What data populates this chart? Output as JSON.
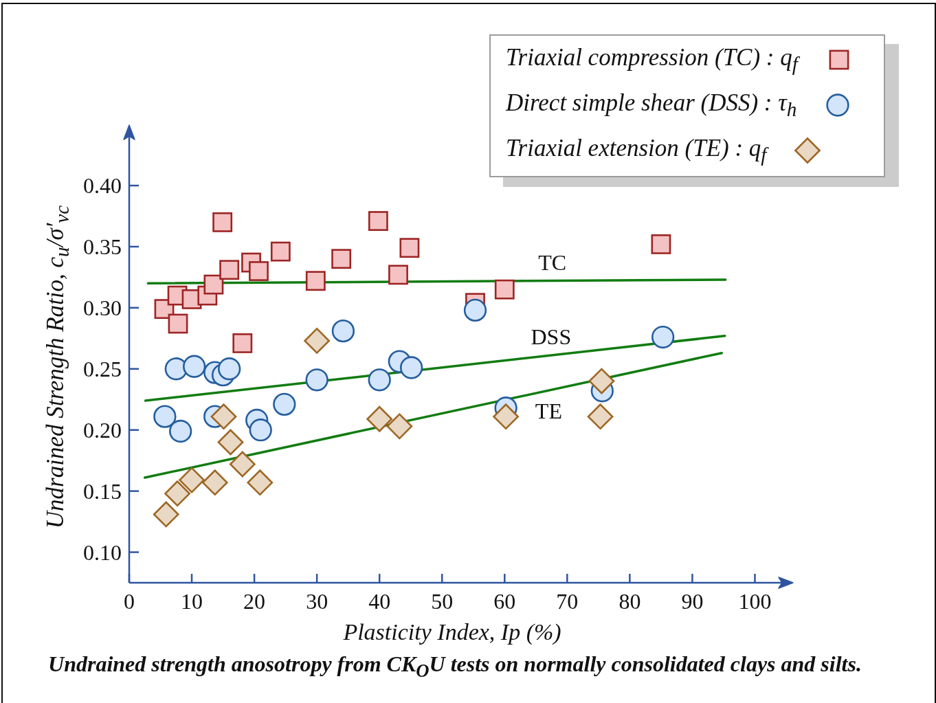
{
  "chart_data": {
    "type": "scatter",
    "xlabel": "Plasticity Index, Ip (%)",
    "ylabel": "Undrained Strength Ratio, c$_{u}$/σ′$_{vc}$",
    "xlim": [
      0,
      105
    ],
    "xticks": [
      0,
      10,
      20,
      30,
      40,
      50,
      60,
      70,
      80,
      90,
      100
    ],
    "ylim": [
      0.075,
      0.445
    ],
    "yticks": [
      {
        "value": 0.1,
        "label": "0.10"
      },
      {
        "value": 0.15,
        "label": "0.15"
      },
      {
        "value": 0.2,
        "label": "0.20"
      },
      {
        "value": 0.25,
        "label": "0.25"
      },
      {
        "value": 0.3,
        "label": "0.30"
      },
      {
        "value": 0.35,
        "label": "0.35"
      },
      {
        "value": 0.4,
        "label": "0.40"
      }
    ],
    "legend": "top right",
    "series": [
      {
        "name": "Triaxial compression (TC) : q$_{f}$",
        "marker": "square",
        "color": "#f4c2c2",
        "x": [
          5.6,
          7.7,
          7.8,
          10.0,
          12.5,
          13.5,
          14.9,
          16.0,
          18.1,
          19.5,
          20.7,
          24.2,
          29.8,
          33.9,
          39.8,
          43.0,
          44.8,
          55.3,
          60.0,
          85.0
        ],
        "values": [
          0.299,
          0.31,
          0.287,
          0.307,
          0.31,
          0.319,
          0.37,
          0.331,
          0.271,
          0.337,
          0.33,
          0.346,
          0.322,
          0.34,
          0.371,
          0.327,
          0.349,
          0.304,
          0.315,
          0.352
        ]
      },
      {
        "name": "Direct simple shear (DSS) : τ$_{h}$",
        "marker": "circle",
        "color": "#d2e5fb",
        "x": [
          5.7,
          7.5,
          8.2,
          10.4,
          13.7,
          13.7,
          15.0,
          16.0,
          20.4,
          21.0,
          24.8,
          30.0,
          34.2,
          40.0,
          43.2,
          45.1,
          55.3,
          60.2,
          75.6,
          85.3
        ],
        "values": [
          0.211,
          0.25,
          0.199,
          0.252,
          0.247,
          0.211,
          0.245,
          0.25,
          0.208,
          0.2,
          0.221,
          0.241,
          0.281,
          0.241,
          0.256,
          0.251,
          0.298,
          0.218,
          0.232,
          0.276
        ]
      },
      {
        "name": "Triaxial extension (TE) : q$_{f}$",
        "marker": "diamond",
        "color": "#e9d8c3",
        "x": [
          5.9,
          7.7,
          10.0,
          13.7,
          15.1,
          16.2,
          18.1,
          20.9,
          30.0,
          40.0,
          43.2,
          60.2,
          75.3,
          75.5
        ],
        "values": [
          0.131,
          0.148,
          0.159,
          0.157,
          0.211,
          0.19,
          0.172,
          0.157,
          0.273,
          0.209,
          0.203,
          0.211,
          0.211,
          0.24
        ]
      },
      {
        "name": "TC",
        "type": "line",
        "marker": "none",
        "line_style": "solid",
        "color": "#117c11",
        "x": [
          3.0,
          95.3
        ],
        "values": [
          0.32,
          0.323
        ]
      },
      {
        "name": "DSS",
        "type": "line",
        "marker": "none",
        "line_style": "solid",
        "color": "#117c11",
        "x": [
          2.6,
          95.2
        ],
        "values": [
          0.224,
          0.277
        ]
      },
      {
        "name": "TE",
        "type": "line",
        "marker": "none",
        "line_style": "solid",
        "color": "#117c11",
        "x": [
          2.5,
          94.7
        ],
        "values": [
          0.161,
          0.263
        ]
      }
    ],
    "annotations": [
      "Undrained strength anosotropy from CK$_{O}$U tests on normally consolidated clays and silts."
    ]
  }
}
